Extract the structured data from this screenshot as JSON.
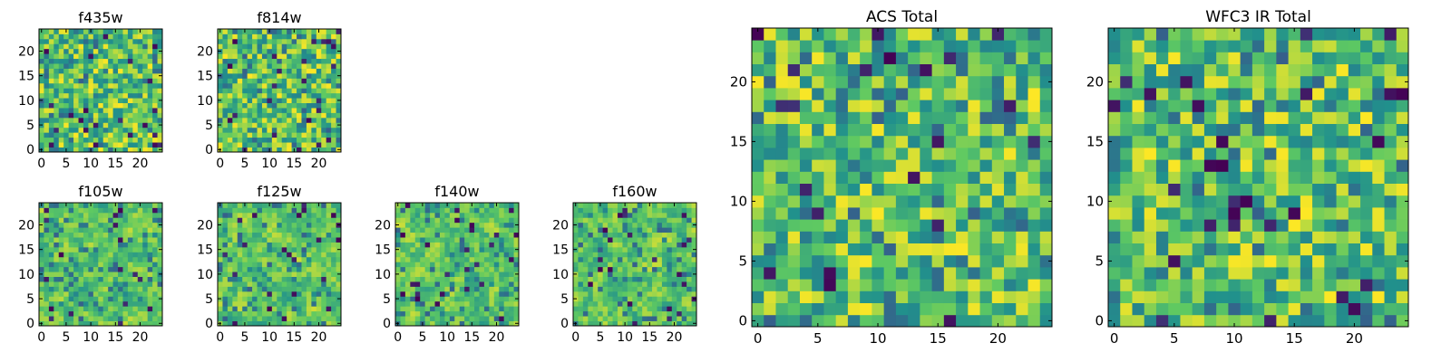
{
  "chart_data": [
    {
      "type": "heatmap",
      "title": "f435w",
      "xticks": [
        "0",
        "5",
        "10",
        "15",
        "20"
      ],
      "yticks": [
        "0",
        "5",
        "10",
        "15",
        "20"
      ],
      "grid": "25x25 pixel image",
      "xlim": [
        0,
        25
      ],
      "ylim": [
        0,
        25
      ],
      "colormap": "viridis"
    },
    {
      "type": "heatmap",
      "title": "f814w",
      "xticks": [
        "0",
        "5",
        "10",
        "15",
        "20"
      ],
      "yticks": [
        "0",
        "5",
        "10",
        "15",
        "20"
      ],
      "grid": "25x25 pixel image",
      "xlim": [
        0,
        25
      ],
      "ylim": [
        0,
        25
      ],
      "colormap": "viridis"
    },
    {
      "type": "heatmap",
      "title": "f105w",
      "xticks": [
        "0",
        "5",
        "10",
        "15",
        "20"
      ],
      "yticks": [
        "0",
        "5",
        "10",
        "15",
        "20"
      ],
      "grid": "25x25 pixel image",
      "xlim": [
        0,
        25
      ],
      "ylim": [
        0,
        25
      ],
      "colormap": "viridis"
    },
    {
      "type": "heatmap",
      "title": "f125w",
      "xticks": [
        "0",
        "5",
        "10",
        "15",
        "20"
      ],
      "yticks": [
        "0",
        "5",
        "10",
        "15",
        "20"
      ],
      "grid": "25x25 pixel image",
      "xlim": [
        0,
        25
      ],
      "ylim": [
        0,
        25
      ],
      "colormap": "viridis"
    },
    {
      "type": "heatmap",
      "title": "f140w",
      "xticks": [
        "0",
        "5",
        "10",
        "15",
        "20"
      ],
      "yticks": [
        "0",
        "5",
        "10",
        "15",
        "20"
      ],
      "grid": "25x25 pixel image",
      "xlim": [
        0,
        25
      ],
      "ylim": [
        0,
        25
      ],
      "colormap": "viridis"
    },
    {
      "type": "heatmap",
      "title": "f160w",
      "xticks": [
        "0",
        "5",
        "10",
        "15",
        "20"
      ],
      "yticks": [
        "0",
        "5",
        "10",
        "15",
        "20"
      ],
      "grid": "25x25 pixel image",
      "xlim": [
        0,
        25
      ],
      "ylim": [
        0,
        25
      ],
      "colormap": "viridis"
    },
    {
      "type": "heatmap",
      "title": "ACS Total",
      "xticks": [
        "0",
        "5",
        "10",
        "15",
        "20"
      ],
      "yticks": [
        "0",
        "5",
        "10",
        "15",
        "20"
      ],
      "grid": "25x25 pixel image",
      "xlim": [
        0,
        25
      ],
      "ylim": [
        0,
        25
      ],
      "colormap": "viridis"
    },
    {
      "type": "heatmap",
      "title": "WFC3 IR Total",
      "xticks": [
        "0",
        "5",
        "10",
        "15",
        "20"
      ],
      "yticks": [
        "0",
        "5",
        "10",
        "15",
        "20"
      ],
      "grid": "25x25 pixel image",
      "xlim": [
        0,
        25
      ],
      "ylim": [
        0,
        25
      ],
      "colormap": "viridis"
    }
  ],
  "colors": {
    "viridis_dark": "#440154",
    "viridis_blue": "#31688e",
    "viridis_teal": "#21918c",
    "viridis_green": "#35b779",
    "viridis_lime": "#90d743",
    "viridis_yellow": "#fde725"
  }
}
